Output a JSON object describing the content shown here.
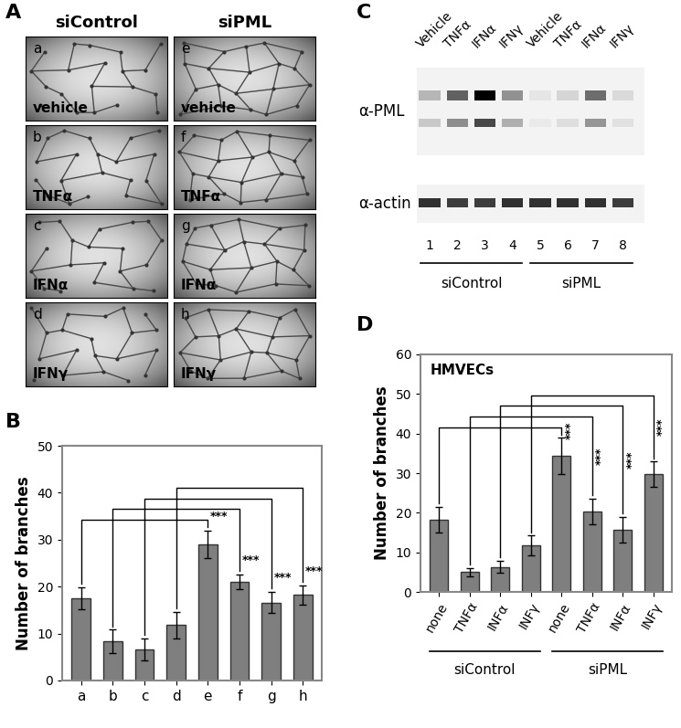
{
  "panel_A": {
    "label": "A",
    "columns": [
      "siControl",
      "siPML"
    ],
    "panels": [
      {
        "letter": "a",
        "treatment": "vehicle"
      },
      {
        "letter": "b",
        "treatment": "TNFα"
      },
      {
        "letter": "c",
        "treatment": "IFNα"
      },
      {
        "letter": "d",
        "treatment": "IFNγ"
      },
      {
        "letter": "e",
        "treatment": "vehicle"
      },
      {
        "letter": "f",
        "treatment": "TNFα"
      },
      {
        "letter": "g",
        "treatment": "IFNα"
      },
      {
        "letter": "h",
        "treatment": "IFNγ"
      }
    ]
  },
  "panel_C": {
    "label": "C",
    "lanes": [
      "Vehicle",
      "TNFα",
      "IFNα",
      "IFNγ",
      "Vehicle",
      "TNFα",
      "IFNα",
      "IFNγ"
    ],
    "lane_numbers": [
      1,
      2,
      3,
      4,
      5,
      6,
      7,
      8
    ],
    "groups": [
      {
        "name": "siControl",
        "lanes": [
          1,
          2,
          3,
          4
        ]
      },
      {
        "name": "siPML",
        "lanes": [
          5,
          6,
          7,
          8
        ]
      }
    ],
    "rows": [
      {
        "name": "α-PML",
        "band_intensity": [
          0.25,
          0.6,
          1.0,
          0.4,
          0.05,
          0.12,
          0.55,
          0.1
        ]
      },
      {
        "name": "α-actin",
        "band_intensity": [
          0.8,
          0.75,
          0.75,
          0.8,
          0.8,
          0.8,
          0.8,
          0.75
        ]
      }
    ]
  },
  "chart_data": [
    {
      "panel": "B",
      "type": "bar",
      "categories": [
        "a",
        "b",
        "c",
        "d",
        "e",
        "f",
        "g",
        "h"
      ],
      "values": [
        17.5,
        8.3,
        6.6,
        11.8,
        29,
        21,
        16.6,
        18.2
      ],
      "errors": [
        2.3,
        2.5,
        2.3,
        2.8,
        3,
        1.5,
        2.3,
        2
      ],
      "ylabel": "Number of branches",
      "ylim": [
        0,
        50
      ],
      "yticks": [
        0,
        10,
        20,
        30,
        40,
        50
      ],
      "color": "#7f7f7f",
      "comparisons": [
        {
          "pair": [
            0,
            4
          ],
          "label": "***"
        },
        {
          "pair": [
            1,
            5
          ],
          "label": "***"
        },
        {
          "pair": [
            2,
            6
          ],
          "label": "***"
        },
        {
          "pair": [
            3,
            7
          ],
          "label": "***"
        }
      ]
    },
    {
      "panel": "D",
      "type": "bar",
      "annotation": "HMVECs",
      "categories": [
        "none",
        "TNFα",
        "INFα",
        "INFγ",
        "none",
        "TNFα",
        "INFα",
        "INFγ"
      ],
      "groups": [
        {
          "name": "siControl",
          "indices": [
            0,
            1,
            2,
            3
          ]
        },
        {
          "name": "siPML",
          "indices": [
            4,
            5,
            6,
            7
          ]
        }
      ],
      "values": [
        18.3,
        5,
        6.3,
        11.7,
        34.3,
        20.3,
        15.7,
        29.7
      ],
      "errors": [
        3.2,
        1.1,
        1.5,
        2.5,
        4.6,
        3.2,
        3.2,
        3.2
      ],
      "ylabel": "Number of branches",
      "ylim": [
        0,
        60
      ],
      "yticks": [
        0,
        10,
        20,
        30,
        40,
        50,
        60
      ],
      "color": "#7f7f7f",
      "comparisons": [
        {
          "pair": [
            0,
            4
          ],
          "label": "***"
        },
        {
          "pair": [
            1,
            5
          ],
          "label": "***"
        },
        {
          "pair": [
            2,
            6
          ],
          "label": "***"
        },
        {
          "pair": [
            3,
            7
          ],
          "label": "***"
        }
      ]
    }
  ]
}
